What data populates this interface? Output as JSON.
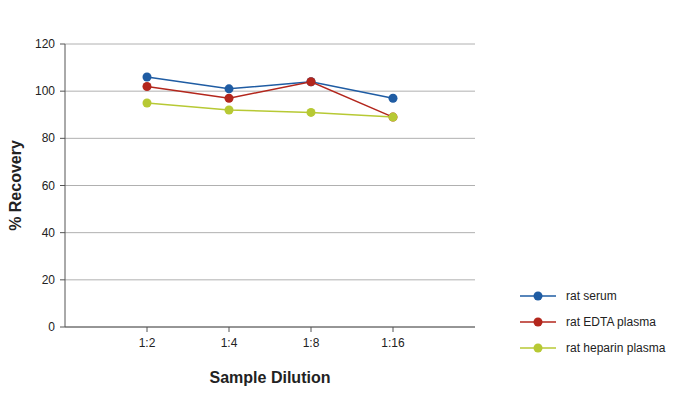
{
  "chart_data": {
    "type": "line",
    "xlabel": "Sample Dilution",
    "ylabel": "% Recovery",
    "categories": [
      "1:2",
      "1:4",
      "1:8",
      "1:16"
    ],
    "series": [
      {
        "name": "rat serum",
        "color": "#1f5ca3",
        "values": [
          106,
          101,
          104,
          97
        ]
      },
      {
        "name": "rat EDTA plasma",
        "color": "#b3261c",
        "values": [
          102,
          97,
          104,
          89
        ]
      },
      {
        "name": "rat heparin plasma",
        "color": "#b7c934",
        "values": [
          95,
          92,
          91,
          89
        ]
      }
    ],
    "ylim": [
      0,
      120
    ],
    "yticks": [
      0,
      20,
      40,
      60,
      80,
      100,
      120
    ],
    "grid": true,
    "legend": "right",
    "marker": "circle"
  }
}
